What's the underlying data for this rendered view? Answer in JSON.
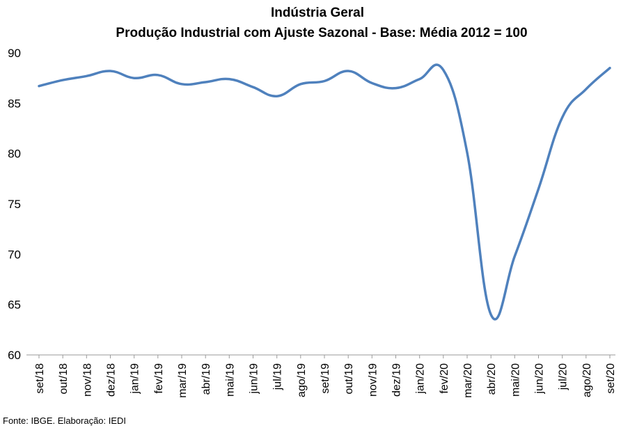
{
  "chart_data": {
    "type": "line",
    "title": "Indústria Geral",
    "subtitle": "Produção Industrial com Ajuste Sazonal - Base: Média 2012 = 100",
    "xlabel": "",
    "ylabel": "",
    "ylim": [
      60,
      90
    ],
    "yticks": [
      60,
      65,
      70,
      75,
      80,
      85,
      90
    ],
    "grid": false,
    "legend": "none",
    "categories": [
      "set/18",
      "out/18",
      "nov/18",
      "dez/18",
      "jan/19",
      "fev/19",
      "mar/19",
      "abr/19",
      "mai/19",
      "jun/19",
      "jul/19",
      "ago/19",
      "set/19",
      "out/19",
      "nov/19",
      "dez/19",
      "jan/20",
      "fev/20",
      "mar/20",
      "abr/20",
      "mai/20",
      "jun/20",
      "jul/20",
      "ago/20",
      "set/20"
    ],
    "series": [
      {
        "name": "",
        "color": "#4f81bd",
        "values": [
          86.7,
          87.3,
          87.7,
          88.2,
          87.5,
          87.8,
          86.9,
          87.1,
          87.4,
          86.6,
          85.7,
          86.9,
          87.2,
          88.2,
          87.0,
          86.5,
          87.4,
          88.3,
          80.1,
          64.0,
          69.8,
          76.5,
          83.6,
          86.4,
          88.5
        ]
      }
    ],
    "source_note": "Fonte: IBGE. Elaboração: IEDI"
  }
}
